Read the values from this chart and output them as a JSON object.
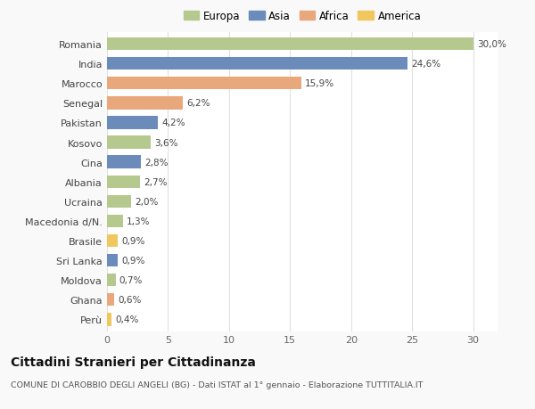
{
  "categories": [
    "Romania",
    "India",
    "Marocco",
    "Senegal",
    "Pakistan",
    "Kosovo",
    "Cina",
    "Albania",
    "Ucraina",
    "Macedonia d/N.",
    "Brasile",
    "Sri Lanka",
    "Moldova",
    "Ghana",
    "Perù"
  ],
  "values": [
    30.0,
    24.6,
    15.9,
    6.2,
    4.2,
    3.6,
    2.8,
    2.7,
    2.0,
    1.3,
    0.9,
    0.9,
    0.7,
    0.6,
    0.4
  ],
  "labels": [
    "30,0%",
    "24,6%",
    "15,9%",
    "6,2%",
    "4,2%",
    "3,6%",
    "2,8%",
    "2,7%",
    "2,0%",
    "1,3%",
    "0,9%",
    "0,9%",
    "0,7%",
    "0,6%",
    "0,4%"
  ],
  "colors": [
    "#b5c98e",
    "#6b8cba",
    "#e8a87c",
    "#e8a87c",
    "#6b8cba",
    "#b5c98e",
    "#6b8cba",
    "#b5c98e",
    "#b5c98e",
    "#b5c98e",
    "#f0c75e",
    "#6b8cba",
    "#b5c98e",
    "#e8a87c",
    "#f0c75e"
  ],
  "legend_labels": [
    "Europa",
    "Asia",
    "Africa",
    "America"
  ],
  "legend_colors": [
    "#b5c98e",
    "#6b8cba",
    "#e8a87c",
    "#f0c75e"
  ],
  "title": "Cittadini Stranieri per Cittadinanza",
  "subtitle": "COMUNE DI CAROBBIO DEGLI ANGELI (BG) - Dati ISTAT al 1° gennaio - Elaborazione TUTTITALIA.IT",
  "xlim": [
    0,
    32
  ],
  "xticks": [
    0,
    5,
    10,
    15,
    20,
    25,
    30
  ],
  "background_color": "#f9f9f9",
  "plot_bg_color": "#ffffff",
  "grid_color": "#e0e0e0"
}
